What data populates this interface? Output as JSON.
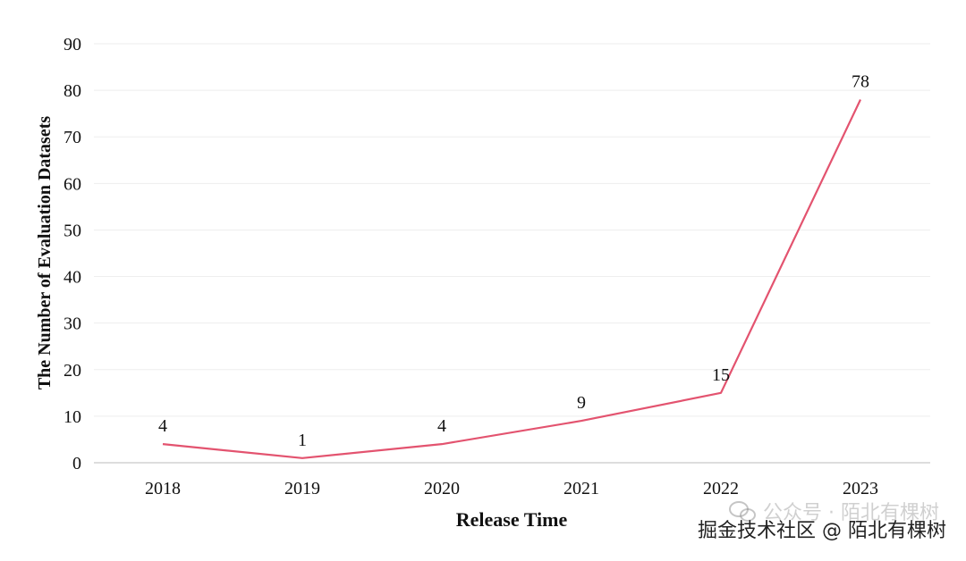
{
  "chart_data": {
    "type": "line",
    "categories": [
      "2018",
      "2019",
      "2020",
      "2021",
      "2022",
      "2023"
    ],
    "series": [
      {
        "values": [
          4,
          1,
          4,
          9,
          15,
          78
        ],
        "color": "#e3536f"
      }
    ],
    "data_labels": [
      "4",
      "1",
      "4",
      "9",
      "15",
      "78"
    ],
    "xlabel": "Release Time",
    "ylabel": "The Number of Evaluation Datasets",
    "ylim": [
      0,
      90
    ],
    "yticks": [
      0,
      10,
      20,
      30,
      40,
      50,
      60,
      70,
      80,
      90
    ],
    "grid": true
  },
  "watermark": {
    "faint_text": "公众号 · 陌北有棵树",
    "text": "掘金技术社区 @ 陌北有棵树",
    "icon": "wechat-icon"
  }
}
